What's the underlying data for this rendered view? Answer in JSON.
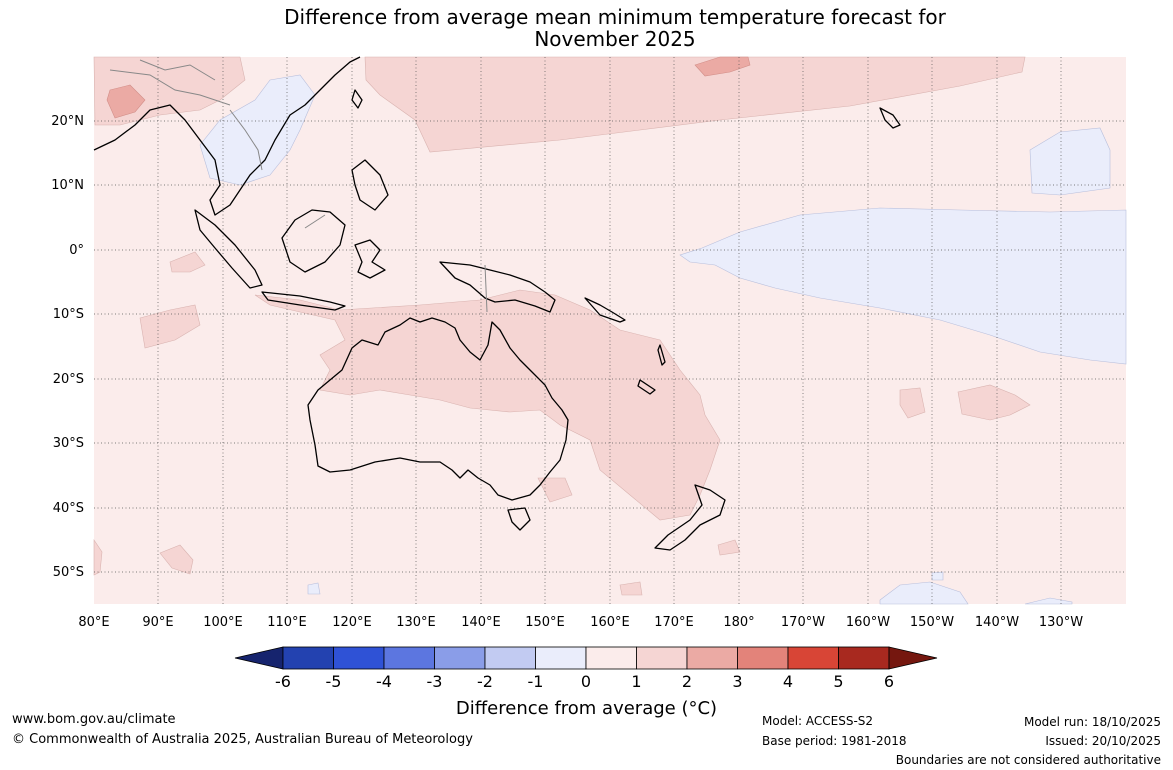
{
  "title": {
    "line1": "Difference from average mean minimum temperature forecast for",
    "line2": "November 2025"
  },
  "map": {
    "region": "Australia, Indonesia, Western Pacific",
    "lon_ticks": [
      "80°E",
      "90°E",
      "100°E",
      "110°E",
      "120°E",
      "130°E",
      "140°E",
      "150°E",
      "160°E",
      "170°E",
      "180°",
      "170°W",
      "160°W",
      "150°W",
      "140°W",
      "130°W"
    ],
    "lat_ticks": [
      "20°N",
      "10°N",
      "0°",
      "10°S",
      "20°S",
      "30°S",
      "40°S",
      "50°S"
    ],
    "background_color": "#fbeceb",
    "grid": "dotted"
  },
  "colorbar": {
    "ticks": [
      "-6",
      "-5",
      "-4",
      "-3",
      "-2",
      "-1",
      "0",
      "1",
      "2",
      "3",
      "4",
      "5",
      "6"
    ],
    "colors": [
      "#16246e",
      "#2342b0",
      "#2f52d6",
      "#5c76e0",
      "#8a9de8",
      "#c2cbf2",
      "#eaedfb",
      "#fbeceb",
      "#f5d5d3",
      "#ebaaa4",
      "#e3837a",
      "#d84536",
      "#a8291f",
      "#75170f"
    ],
    "label": "Difference from average (°C)"
  },
  "footer": {
    "website": "www.bom.gov.au/climate",
    "copyright": "© Commonwealth of Australia 2025, Australian Bureau of Meteorology",
    "model": "Model: ACCESS-S2",
    "base_period": "Base period: 1981-2018",
    "model_run": "Model run: 18/10/2025",
    "issued": "Issued: 20/10/2025",
    "disclaimer": "Boundaries are not considered authoritative"
  }
}
